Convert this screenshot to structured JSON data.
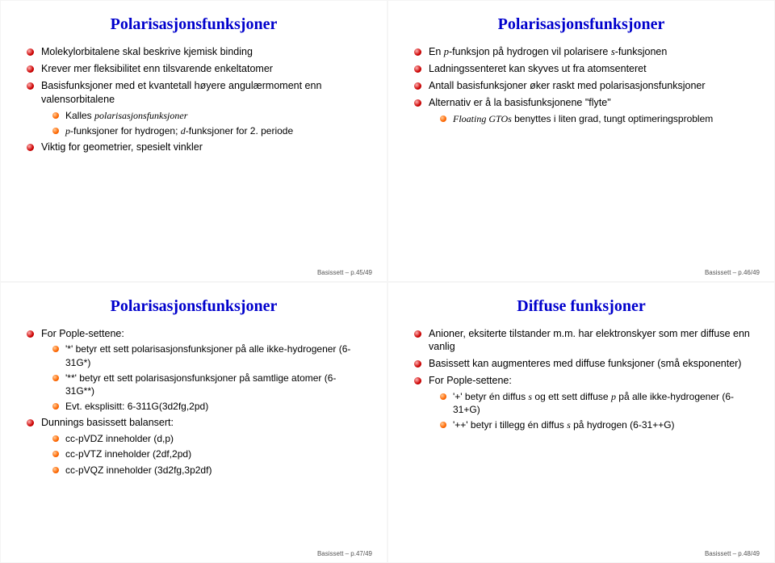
{
  "slides": [
    {
      "title": "Polarisasjonsfunksjoner",
      "footer": "Basissett – p.45/49",
      "items": [
        {
          "html": "Molekylorbitalene skal beskrive kjemisk binding"
        },
        {
          "html": "Krever mer fleksibilitet enn tilsvarende enkeltatomer"
        },
        {
          "html": "Basisfunksjoner med et kvantetall høyere angulærmoment enn valensorbitalene",
          "sub": [
            {
              "html": "Kalles <span class='it'>polarisasjonsfunksjoner</span>"
            },
            {
              "html": "<span class='it'>p</span>-funksjoner for hydrogen; <span class='it'>d</span>-funksjoner for 2. periode"
            }
          ]
        },
        {
          "html": "Viktig for geometrier, spesielt vinkler"
        }
      ]
    },
    {
      "title": "Polarisasjonsfunksjoner",
      "footer": "Basissett – p.46/49",
      "items": [
        {
          "html": "En <span class='it'>p</span>-funksjon på hydrogen vil polarisere <span class='it'>s</span>-funksjonen"
        },
        {
          "html": "Ladningssenteret kan skyves ut fra atomsenteret"
        },
        {
          "html": "Antall basisfunksjoner øker raskt med polarisasjonsfunksjoner"
        },
        {
          "html": "Alternativ er å la basisfunksjonene \"flyte\"",
          "sub": [
            {
              "html": "<span class='it'>Floating GTOs</span> benyttes i liten grad, tungt optimeringsproblem"
            }
          ]
        }
      ]
    },
    {
      "title": "Polarisasjonsfunksjoner",
      "footer": "Basissett – p.47/49",
      "items": [
        {
          "html": "For Pople-settene:",
          "sub": [
            {
              "html": "'*' betyr ett sett polarisasjonsfunksjoner på alle ikke-hydrogener (6-31G*)"
            },
            {
              "html": "'**' betyr ett sett polarisasjonsfunksjoner på samtlige atomer (6-31G**)"
            },
            {
              "html": "Evt. eksplisitt: 6-311G(3d2fg,2pd)"
            }
          ]
        },
        {
          "html": "Dunnings basissett balansert:",
          "sub": [
            {
              "html": "cc-pVDZ inneholder (d,p)"
            },
            {
              "html": "cc-pVTZ inneholder (2df,2pd)"
            },
            {
              "html": "cc-pVQZ inneholder (3d2fg,3p2df)"
            }
          ]
        }
      ]
    },
    {
      "title": "Diffuse funksjoner",
      "footer": "Basissett – p.48/49",
      "items": [
        {
          "html": "Anioner, eksiterte tilstander m.m. har elektronskyer som mer diffuse enn vanlig"
        },
        {
          "html": "Basissett kan augmenteres med diffuse funksjoner (små eksponenter)"
        },
        {
          "html": "For Pople-settene:",
          "sub": [
            {
              "html": "'+' betyr én diffus <span class='it'>s</span> og ett sett diffuse <span class='it'>p</span> på alle ikke-hydrogener (6-31+G)"
            },
            {
              "html": "'++' betyr i tillegg én diffus <span class='it'>s</span> på hydrogen (6-31++G)"
            }
          ]
        }
      ]
    }
  ]
}
